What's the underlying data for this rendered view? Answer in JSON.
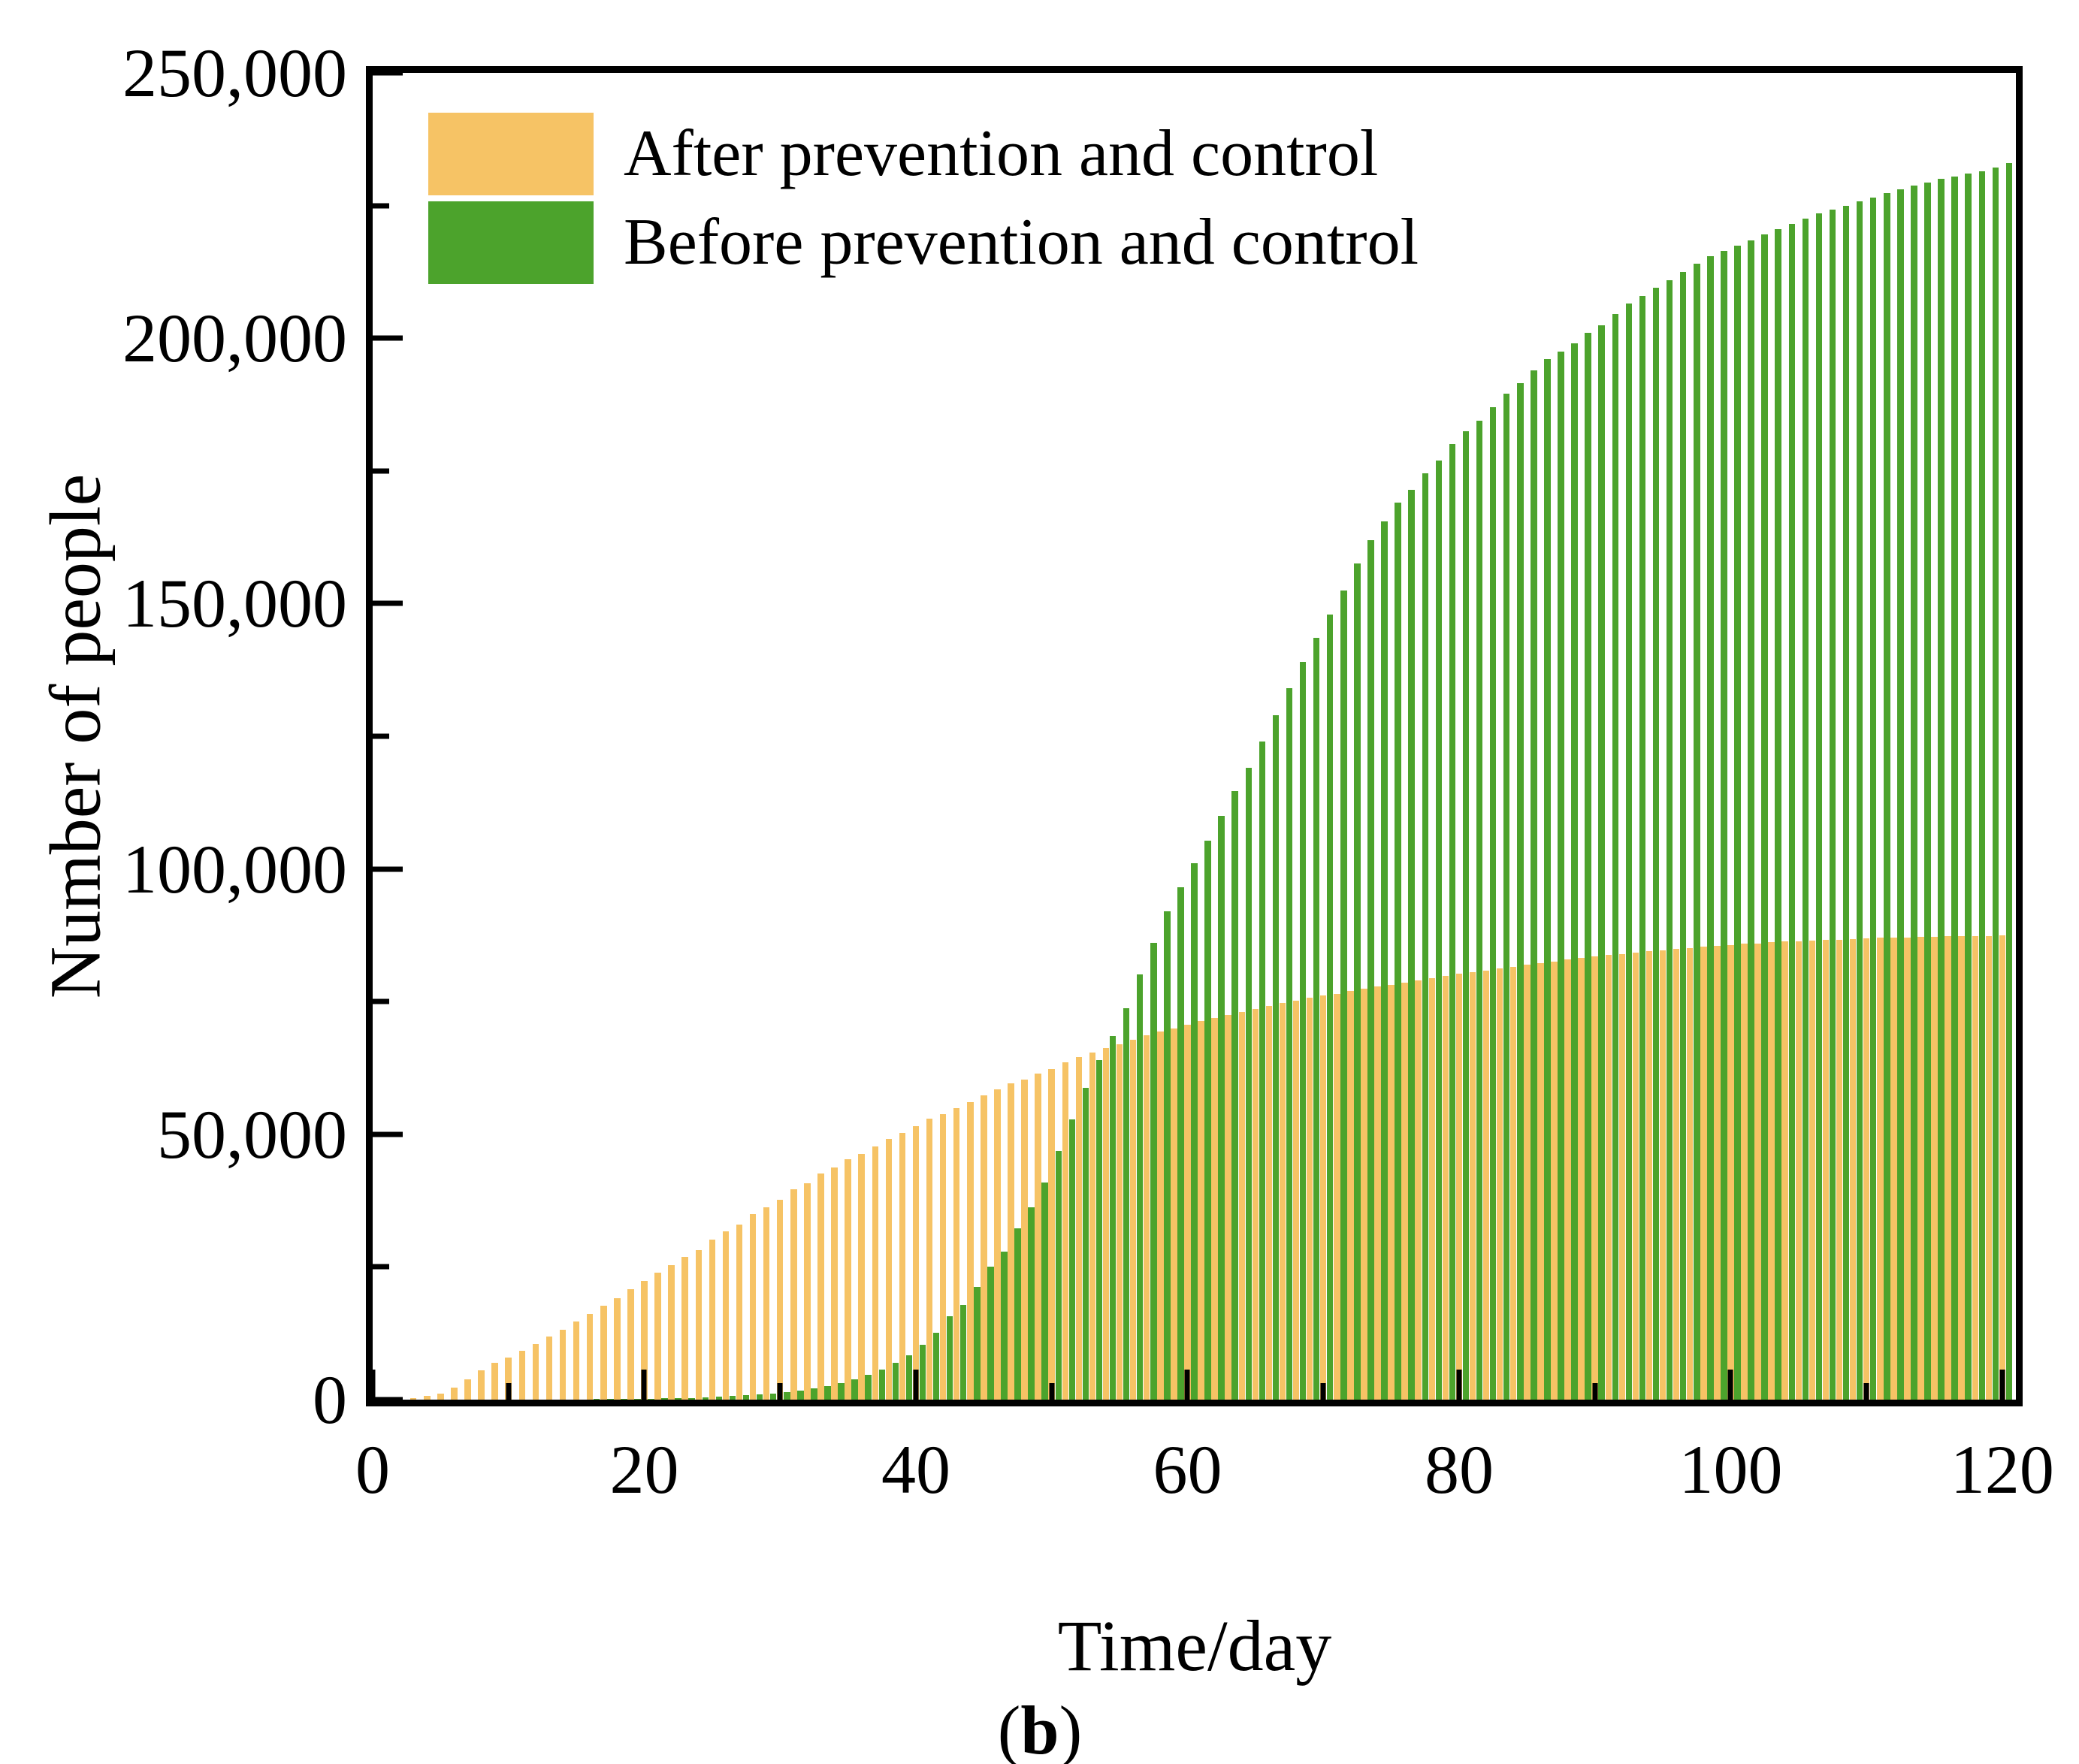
{
  "figure": {
    "caption_open": "(",
    "caption_letter": "b",
    "caption_close": ")"
  },
  "chart_data": {
    "type": "bar",
    "title": "",
    "xlabel": "Time/day",
    "ylabel": "Number of people",
    "xlim": [
      0,
      121
    ],
    "ylim": [
      0,
      250000
    ],
    "grid": "off",
    "legend_position": "top-left-inside",
    "bar_style": "paired daily bars, second series offset half a day",
    "x_ticks_major": [
      0,
      20,
      40,
      60,
      80,
      100,
      120
    ],
    "x_tick_labels": [
      "0",
      "20",
      "40",
      "60",
      "80",
      "100",
      "120"
    ],
    "x_ticks_minor": [
      10,
      30,
      50,
      70,
      90,
      110
    ],
    "y_ticks_major": [
      0,
      50000,
      100000,
      150000,
      200000,
      250000
    ],
    "y_tick_labels": [
      "0",
      "50,000",
      "100,000",
      "150,000",
      "200,000",
      "250,000"
    ],
    "y_ticks_minor": [
      25000,
      75000,
      125000,
      175000,
      225000
    ],
    "days": [
      1,
      2,
      3,
      4,
      5,
      6,
      7,
      8,
      9,
      10,
      11,
      12,
      13,
      14,
      15,
      16,
      17,
      18,
      19,
      20,
      21,
      22,
      23,
      24,
      25,
      26,
      27,
      28,
      29,
      30,
      31,
      32,
      33,
      34,
      35,
      36,
      37,
      38,
      39,
      40,
      41,
      42,
      43,
      44,
      45,
      46,
      47,
      48,
      49,
      50,
      51,
      52,
      53,
      54,
      55,
      56,
      57,
      58,
      59,
      60,
      61,
      62,
      63,
      64,
      65,
      66,
      67,
      68,
      69,
      70,
      71,
      72,
      73,
      74,
      75,
      76,
      77,
      78,
      79,
      80,
      81,
      82,
      83,
      84,
      85,
      86,
      87,
      88,
      89,
      90,
      91,
      92,
      93,
      94,
      95,
      96,
      97,
      98,
      99,
      100,
      101,
      102,
      103,
      104,
      105,
      106,
      107,
      108,
      109,
      110,
      111,
      112,
      113,
      114,
      115,
      116,
      117,
      118,
      119,
      120
    ],
    "series": [
      {
        "name": "After prevention and control",
        "color": "#F6C365",
        "offset_days": 0,
        "values": [
          0,
          100,
          300,
          700,
          1200,
          2300,
          3800,
          5500,
          6900,
          7900,
          9200,
          10500,
          11900,
          13200,
          14700,
          16200,
          17700,
          19100,
          20800,
          22300,
          23900,
          25300,
          26900,
          28200,
          30100,
          31700,
          33000,
          34900,
          36200,
          37600,
          39700,
          40800,
          42600,
          43800,
          45300,
          46300,
          47700,
          49100,
          50300,
          51600,
          52900,
          53800,
          54900,
          56100,
          57300,
          58400,
          59600,
          60300,
          61400,
          62300,
          63600,
          64500,
          65400,
          66300,
          67000,
          67800,
          68700,
          69400,
          70000,
          70600,
          71400,
          71900,
          72500,
          73000,
          73600,
          74200,
          74700,
          75200,
          75700,
          76100,
          76500,
          77000,
          77400,
          77800,
          78200,
          78600,
          79000,
          79400,
          79800,
          80200,
          80600,
          80900,
          81300,
          81600,
          82000,
          82300,
          82600,
          82900,
          83200,
          83500,
          83800,
          84000,
          84300,
          84500,
          84700,
          84900,
          85100,
          85300,
          85500,
          85700,
          85900,
          86000,
          86200,
          86300,
          86400,
          86500,
          86600,
          86700,
          86800,
          86900,
          87000,
          87100,
          87100,
          87200,
          87200,
          87300,
          87300,
          87400,
          87400,
          87500
        ]
      },
      {
        "name": "Before prevention and control",
        "color": "#4CA32C",
        "offset_days": 0.5,
        "values": [
          0,
          0,
          0,
          0,
          0,
          0,
          10,
          10,
          10,
          20,
          20,
          30,
          40,
          50,
          60,
          80,
          100,
          130,
          160,
          200,
          250,
          300,
          350,
          400,
          500,
          700,
          800,
          1000,
          1200,
          1400,
          1700,
          2100,
          2600,
          3100,
          3800,
          4700,
          5700,
          6900,
          8400,
          10300,
          12600,
          15700,
          17800,
          21300,
          25100,
          27900,
          32300,
          36300,
          40900,
          46800,
          52800,
          58800,
          64000,
          68500,
          73800,
          80100,
          86100,
          92000,
          96500,
          101100,
          105300,
          110000,
          114700,
          119100,
          124000,
          129000,
          134000,
          139000,
          143500,
          148000,
          152500,
          157500,
          162000,
          165500,
          169000,
          171500,
          174500,
          177000,
          180000,
          182500,
          184500,
          187000,
          189500,
          191500,
          194000,
          196000,
          197500,
          199000,
          201000,
          202500,
          204500,
          206500,
          208000,
          209500,
          211000,
          212500,
          214000,
          215500,
          216500,
          217500,
          218500,
          219500,
          220500,
          221500,
          222500,
          223500,
          224200,
          225000,
          225800,
          226500,
          227300,
          228000,
          228700,
          229300,
          230000,
          230500,
          231000,
          231500,
          232200,
          233000
        ]
      }
    ]
  }
}
